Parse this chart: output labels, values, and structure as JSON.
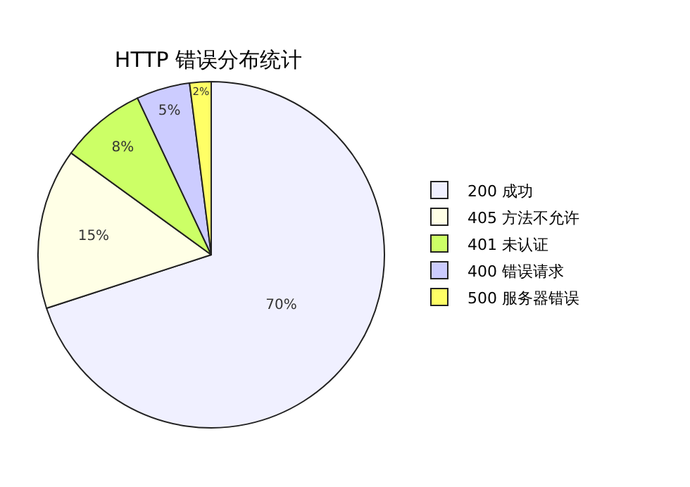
{
  "chart_data": {
    "type": "pie",
    "title": "HTTP 错误分布统计",
    "categories": [
      "200 成功",
      "405 方法不允许",
      "401 未认证",
      "400 错误请求",
      "500 服务器错误"
    ],
    "values": [
      70,
      15,
      8,
      5,
      2
    ],
    "colors": [
      "#f0f0ff",
      "#ffffe6",
      "#ccff66",
      "#ccccff",
      "#ffff66"
    ],
    "value_labels": [
      "70%",
      "15%",
      "8%",
      "5%",
      "2%"
    ],
    "legend": "right"
  }
}
